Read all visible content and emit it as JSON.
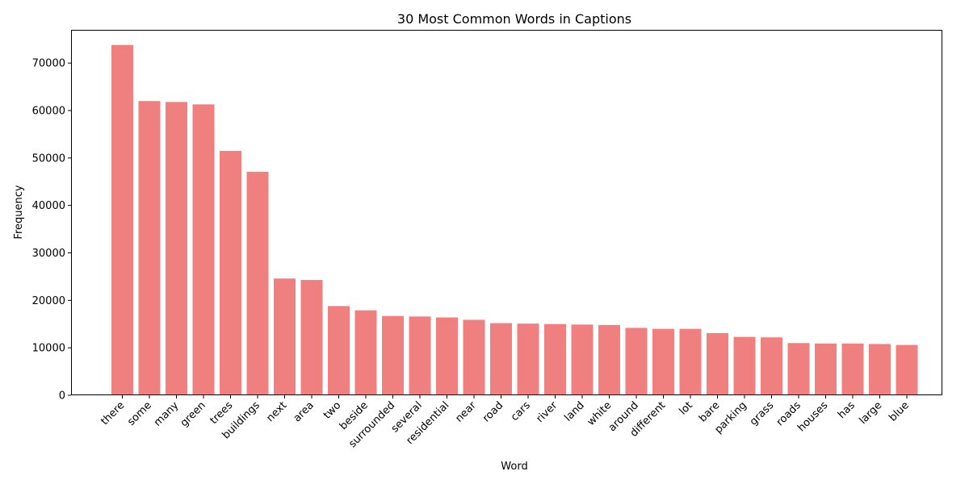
{
  "chart_data": {
    "type": "bar",
    "title": "30 Most Common Words in Captions",
    "xlabel": "Word",
    "ylabel": "Frequency",
    "ylim": [
      0,
      77000
    ],
    "yticks": [
      0,
      10000,
      20000,
      30000,
      40000,
      50000,
      60000,
      70000
    ],
    "grid": false,
    "bar_color": "#f08080",
    "categories": [
      "there",
      "some",
      "many",
      "green",
      "trees",
      "buildings",
      "next",
      "area",
      "two",
      "beside",
      "surrounded",
      "several",
      "residential",
      "near",
      "road",
      "cars",
      "river",
      "land",
      "white",
      "around",
      "different",
      "lot",
      "bare",
      "parking",
      "grass",
      "roads",
      "houses",
      "has",
      "large",
      "blue"
    ],
    "values": [
      73800,
      62000,
      61800,
      61300,
      51500,
      47100,
      24600,
      24300,
      18800,
      17900,
      16700,
      16600,
      16400,
      15900,
      15200,
      15100,
      15000,
      14900,
      14800,
      14200,
      14000,
      14000,
      13100,
      12300,
      12200,
      11000,
      10900,
      10900,
      10800,
      10600
    ]
  }
}
